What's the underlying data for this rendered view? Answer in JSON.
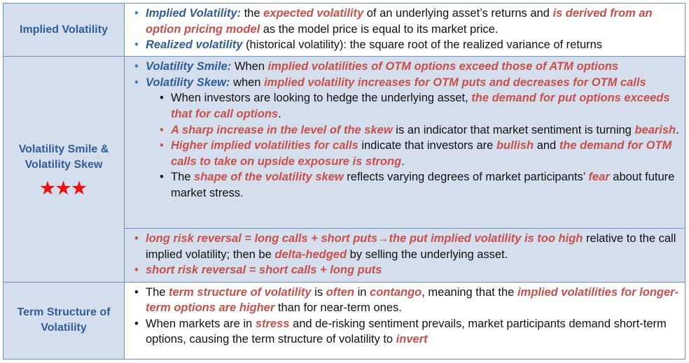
{
  "rows": [
    {
      "label": "Implied Volatility",
      "bullets": [
        {
          "term": "Implied Volatility:",
          "p1": " the ",
          "e1": "expected volatility",
          "p2": " of an underlying asset’s returns and ",
          "e2": "is derived from an option pricing model",
          "p3": " as the model price is equal to its market price."
        },
        {
          "term": "Realized volatility",
          "p1": " (historical volatility): the square root of the realized variance of returns"
        }
      ]
    },
    {
      "label_line1": "Volatility Smile &",
      "label_line2": "Volatility Skew",
      "stars": "★★★",
      "bullets": [
        {
          "term": "Volatility Smile:",
          "p1": " When ",
          "e1": "implied volatilities of OTM options exceed those of ATM options"
        },
        {
          "term": "Volatility Skew:",
          "p1": " when ",
          "e1": "implied volatility increases for OTM puts and decreases for OTM calls"
        }
      ],
      "sub": [
        {
          "p1": "When investors are looking to hedge the underlying asset, ",
          "e1": "the demand for put options exceeds that for call options",
          "p2": "."
        },
        {
          "e1": "A sharp increase in the level of the skew",
          "p1": " is an indicator that market sentiment is turning ",
          "e2": "bearish",
          "p2": "."
        },
        {
          "e1": "Higher implied volatilities for calls",
          "p1": " indicate that investors are ",
          "e2": "bullish",
          "p2": " and ",
          "e3": "the demand for OTM calls to take on upside exposure is strong",
          "p3": "."
        },
        {
          "p1": "The ",
          "e1": "shape of the volatility skew",
          "p2": " reflects varying degrees of market participants’ ",
          "e2": "fear",
          "p3": " about future market stress."
        }
      ],
      "risk": [
        {
          "e1": "long risk reversal = long calls + short puts",
          "arrow": "→",
          "e2": "the put implied volatility is too high",
          "p1": " relative to the call implied volatility; then be ",
          "e3": "delta-hedged",
          "p2": " by selling the underlying asset."
        },
        {
          "e1": "short risk reversal = short calls + long puts"
        }
      ]
    },
    {
      "label_line1": "Term Structure of",
      "label_line2": "Volatility",
      "bullets": [
        {
          "p1": "The ",
          "e1": "term structure of volatility",
          "p2": " is ",
          "e2": "often",
          "p3": " in ",
          "e3": "contango",
          "p4": ", meaning that the ",
          "e4": "implied volatilities for longer-term options are higher",
          "p5": " than for near-term ones."
        },
        {
          "p1": "When markets are in ",
          "e1": "stress",
          "p2": " and de-risking sentiment prevails, market participants demand short-term options, causing the term structure of volatility to ",
          "e2": "invert"
        }
      ]
    }
  ],
  "colors": {
    "title_blue": "#2e5d9a",
    "emphasis_red": "#c8504b",
    "label_bg": "#d5deec",
    "border": "#6f8fb5",
    "star_red": "#ee1111"
  }
}
